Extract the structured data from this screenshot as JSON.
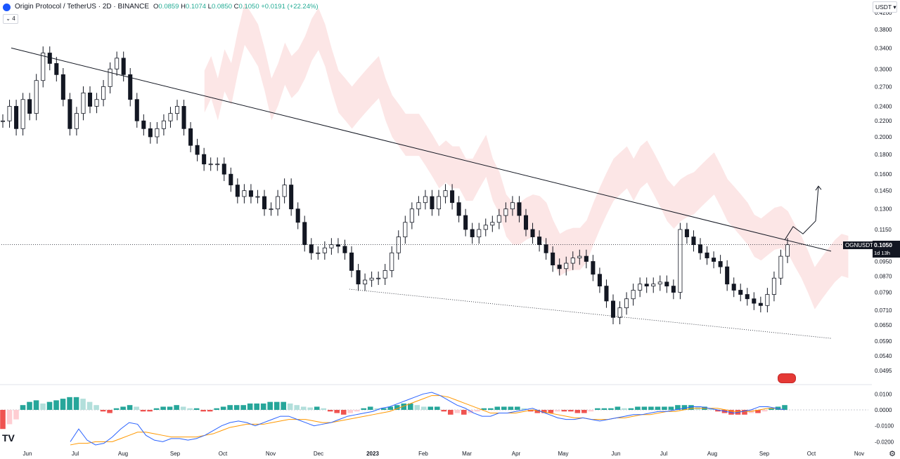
{
  "header": {
    "symbol_title": "Origin Protocol / TetherUS · 2D · BINANCE",
    "open_label": "O",
    "open_value": "0.0859",
    "high_label": "H",
    "high_value": "0.1074",
    "low_label": "L",
    "low_value": "0.0850",
    "close_label": "C",
    "close_value": "0.1050",
    "change": "+0.0191 (+22.24%)",
    "collapse_count": "4"
  },
  "toolbar": {
    "currency": "USDT",
    "currency_caret": "▾"
  },
  "last_price": {
    "ticker": "OGNUSDT",
    "value": "0.1050",
    "countdown": "1d 13h"
  },
  "colors": {
    "up": "#ffffff",
    "down": "#131722",
    "cloud_bear": "#fce3e3",
    "cloud_bull": "#dff3e3",
    "macd": "#2962ff",
    "signal": "#ff9800",
    "hist_up": "#26a69a",
    "hist_up_weak": "#b2dfdb",
    "hist_down": "#ef5350",
    "hist_down_weak": "#ffcdd2"
  },
  "chart_data": [
    {
      "type": "candlestick",
      "scale": "log",
      "price_ticks": [
        "0.4200",
        "0.3800",
        "0.3400",
        "0.3000",
        "0.2700",
        "0.2400",
        "0.2200",
        "0.2000",
        "0.1800",
        "0.1600",
        "0.1450",
        "0.1300",
        "0.1150",
        "0.0950",
        "0.0870",
        "0.0790",
        "0.0710",
        "0.0650",
        "0.0590",
        "0.0540",
        "0.0495"
      ],
      "x_ticks": [
        "Jun",
        "Jul",
        "Aug",
        "Sep",
        "Oct",
        "Nov",
        "Dec",
        "2023",
        "Feb",
        "Mar",
        "Apr",
        "May",
        "Jun",
        "Jul",
        "Aug",
        "Sep",
        "Oct",
        "Nov"
      ],
      "close_series": [
        0.22,
        0.24,
        0.21,
        0.25,
        0.23,
        0.28,
        0.33,
        0.31,
        0.29,
        0.25,
        0.21,
        0.23,
        0.26,
        0.24,
        0.25,
        0.27,
        0.3,
        0.32,
        0.29,
        0.25,
        0.22,
        0.21,
        0.2,
        0.21,
        0.22,
        0.23,
        0.24,
        0.21,
        0.19,
        0.18,
        0.17,
        0.17,
        0.17,
        0.16,
        0.15,
        0.14,
        0.145,
        0.14,
        0.14,
        0.13,
        0.13,
        0.14,
        0.15,
        0.13,
        0.12,
        0.105,
        0.1,
        0.1,
        0.103,
        0.105,
        0.104,
        0.1,
        0.09,
        0.083,
        0.085,
        0.086,
        0.086,
        0.09,
        0.1,
        0.11,
        0.12,
        0.13,
        0.135,
        0.14,
        0.13,
        0.14,
        0.145,
        0.135,
        0.125,
        0.115,
        0.11,
        0.115,
        0.118,
        0.12,
        0.125,
        0.13,
        0.135,
        0.125,
        0.115,
        0.11,
        0.105,
        0.1,
        0.093,
        0.091,
        0.094,
        0.097,
        0.098,
        0.095,
        0.088,
        0.082,
        0.075,
        0.068,
        0.072,
        0.076,
        0.08,
        0.083,
        0.082,
        0.083,
        0.084,
        0.082,
        0.079,
        0.115,
        0.11,
        0.105,
        0.1,
        0.097,
        0.095,
        0.092,
        0.083,
        0.08,
        0.078,
        0.076,
        0.074,
        0.073,
        0.078,
        0.086,
        0.098,
        0.105
      ],
      "trendline_upper": [
        0.34,
        0.101
      ],
      "trendline_lower": [
        0.0805,
        0.06
      ],
      "projection": [
        0.108,
        0.117,
        0.112,
        0.121,
        0.149
      ],
      "last": 0.105
    },
    {
      "type": "macd",
      "y_ticks": [
        "0.0100",
        "0.0000",
        "-0.0100",
        "-0.0200"
      ],
      "histogram": [
        -0.012,
        -0.009,
        -0.006,
        0.003,
        0.005,
        0.006,
        0.004,
        0.005,
        0.006,
        0.007,
        0.008,
        0.008,
        0.007,
        0.005,
        0.003,
        -0.001,
        -0.002,
        0.001,
        0.002,
        0.003,
        0.002,
        -0.001,
        -0.001,
        0.001,
        0.002,
        0.002,
        0.003,
        0.002,
        0.001,
        0.001,
        -0.001,
        -0.001,
        0.001,
        0.002,
        0.003,
        0.003,
        0.003,
        0.004,
        0.004,
        0.004,
        0.005,
        0.005,
        0.005,
        0.004,
        0.003,
        0.002,
        0.0015,
        0.002,
        0.001,
        -0.001,
        -0.002,
        -0.003,
        -0.002,
        -0.001,
        0.001,
        0.002,
        0.001,
        0.001,
        0.002,
        0.003,
        0.004,
        0.004,
        0.003,
        0.002,
        0.002,
        0.002,
        -0.001,
        -0.003,
        -0.002,
        -0.003,
        -0.002,
        -0.001,
        0.001,
        0.001,
        0.002,
        0.002,
        0.002,
        0.002,
        0.001,
        -0.001,
        -0.002,
        -0.002,
        -0.002,
        -0.001,
        -0.001,
        -0.001,
        -0.002,
        -0.002,
        -0.001,
        0.001,
        0.001,
        0.001,
        0.002,
        0.001,
        0.001,
        0.002,
        0.002,
        0.002,
        0.002,
        0.002,
        0.002,
        0.003,
        0.003,
        0.003,
        0.002,
        0.002,
        0.001,
        -0.001,
        -0.002,
        -0.003,
        -0.003,
        -0.003,
        -0.002,
        -0.002,
        -0.001,
        0.001,
        0.002,
        0.003
      ],
      "macd_line": [
        -0.02,
        -0.012,
        -0.019,
        -0.022,
        -0.021,
        -0.017,
        -0.012,
        -0.008,
        -0.009,
        -0.016,
        -0.019,
        -0.02,
        -0.018,
        -0.018,
        -0.019,
        -0.018,
        -0.016,
        -0.013,
        -0.01,
        -0.008,
        -0.007,
        -0.008,
        -0.01,
        -0.008,
        -0.006,
        -0.004,
        -0.004,
        -0.006,
        -0.008,
        -0.01,
        -0.009,
        -0.008,
        -0.006,
        -0.004,
        -0.003,
        -0.002,
        -0.001,
        0.001,
        0.002,
        0.004,
        0.006,
        0.008,
        0.01,
        0.011,
        0.009,
        0.006,
        0.003,
        0.001,
        -0.002,
        -0.004,
        -0.004,
        -0.002,
        -0.002,
        -0.001,
        0.0,
        0.001,
        -0.001,
        -0.003,
        -0.005,
        -0.006,
        -0.006,
        -0.005,
        -0.006,
        -0.007,
        -0.006,
        -0.005,
        -0.004,
        -0.003,
        -0.003,
        -0.002,
        -0.001,
        -0.001,
        0.0,
        0.001,
        0.002,
        0.002,
        0.001,
        0.0,
        -0.001,
        -0.002,
        -0.001,
        0.0,
        0.002,
        0.002,
        0.001,
        0.0
      ],
      "signal_line": [
        -0.022,
        -0.021,
        -0.021,
        -0.02,
        -0.02,
        -0.02,
        -0.018,
        -0.016,
        -0.014,
        -0.014,
        -0.015,
        -0.016,
        -0.017,
        -0.017,
        -0.017,
        -0.017,
        -0.016,
        -0.015,
        -0.013,
        -0.011,
        -0.01,
        -0.009,
        -0.009,
        -0.009,
        -0.008,
        -0.007,
        -0.006,
        -0.006,
        -0.006,
        -0.007,
        -0.008,
        -0.008,
        -0.007,
        -0.006,
        -0.005,
        -0.004,
        -0.003,
        -0.002,
        -0.001,
        0.001,
        0.003,
        0.005,
        0.007,
        0.009,
        0.009,
        0.008,
        0.006,
        0.004,
        0.002,
        0.0,
        -0.002,
        -0.002,
        -0.002,
        -0.002,
        -0.001,
        0.0,
        -0.001,
        -0.002,
        -0.003,
        -0.004,
        -0.005,
        -0.005,
        -0.006,
        -0.006,
        -0.006,
        -0.005,
        -0.005,
        -0.004,
        -0.003,
        -0.003,
        -0.002,
        -0.001,
        -0.001,
        0.0,
        0.001,
        0.001,
        0.001,
        0.001,
        0.0,
        -0.001,
        -0.001,
        -0.001,
        0.0,
        0.001,
        0.001,
        0.0
      ]
    }
  ]
}
